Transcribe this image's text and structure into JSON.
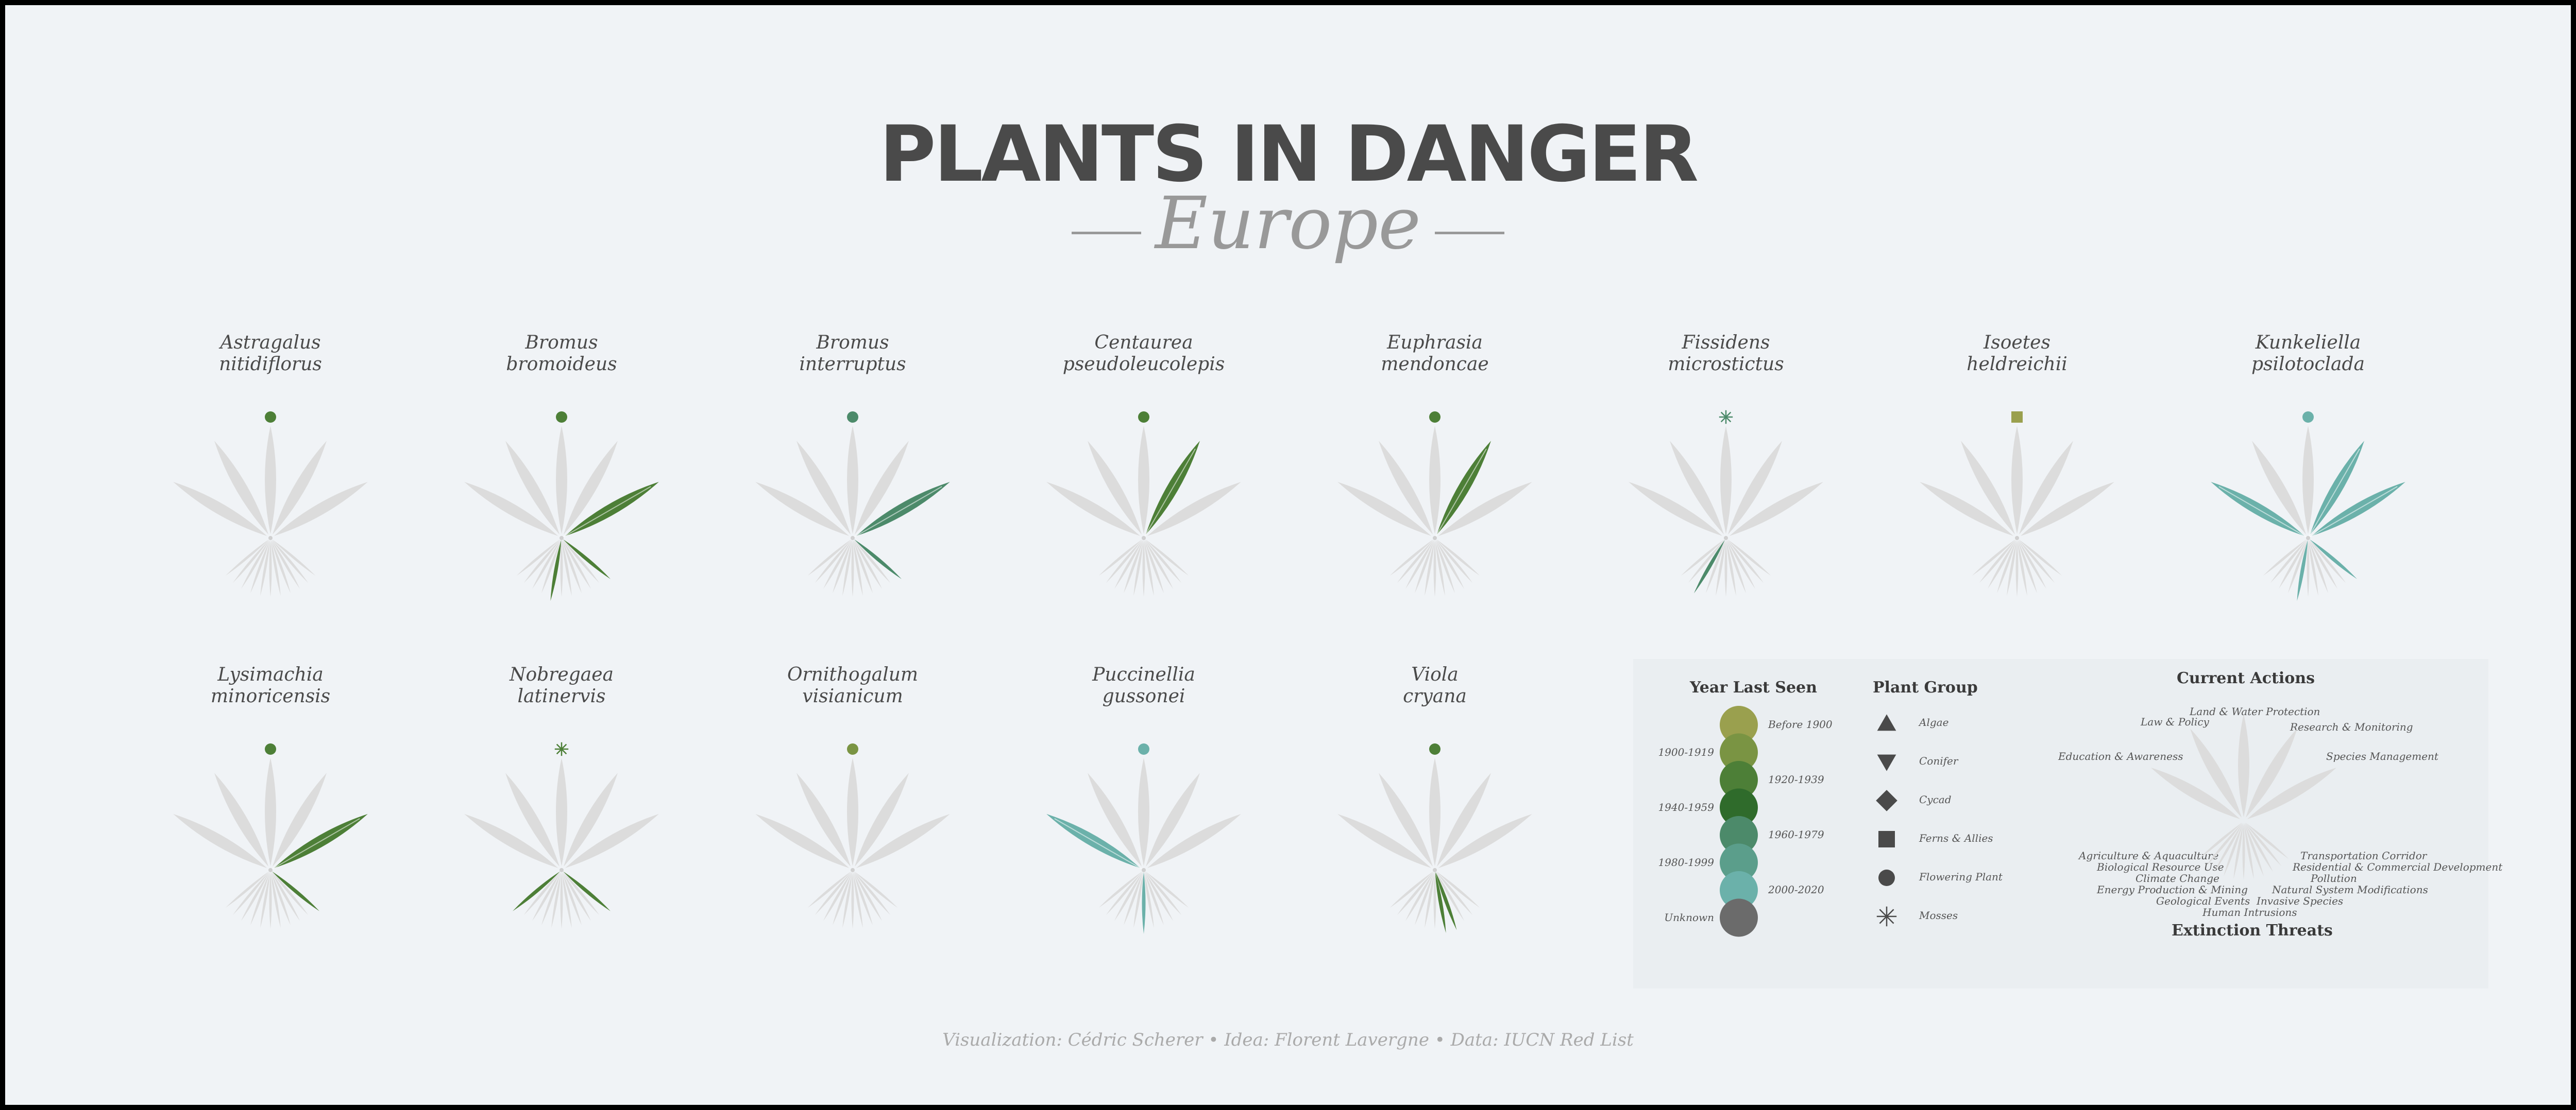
{
  "header": {
    "title": "PLANTS IN DANGER",
    "subtitle": "Europe"
  },
  "caption": {
    "text": "Visualization: Cédric Scherer  • Idea: Florent Lavergne  •  Data: IUCN Red List"
  },
  "colors": {
    "background": "#f0f3f6",
    "ghost_leaf": "#dcdcdc",
    "title": "#4a4a4a",
    "year_palette": {
      "Before 1900": "#9aa04e",
      "1900-1919": "#7a9443",
      "1920-1939": "#4d7f37",
      "1940-1959": "#2f6b2b",
      "1960-1979": "#4c8a6a",
      "1980-1999": "#5b9e8b",
      "2000-2020": "#6bb1aa",
      "Unknown": "#6b6b6b"
    }
  },
  "chart_data": {
    "type": "radial-glyph",
    "actions": [
      "Land & Water Protection",
      "Law & Policy",
      "Research & Monitoring",
      "Education & Awareness",
      "Species Management"
    ],
    "threats": [
      "Agriculture & Aquaculture",
      "Biological Resource Use",
      "Climate Change",
      "Energy Production & Mining",
      "Geological Events",
      "Human Intrusions",
      "Invasive Species",
      "Natural System Modifications",
      "Pollution",
      "Residential & Commercial Development",
      "Transportation Corridor"
    ],
    "species": [
      {
        "name": [
          "Astragalus",
          "nitidiflorus"
        ],
        "group": "Flowering Plant",
        "year": "1920-1939",
        "actions": [],
        "threats": []
      },
      {
        "name": [
          "Bromus",
          "bromoideus"
        ],
        "group": "Flowering Plant",
        "year": "1920-1939",
        "actions": [
          "Species Management"
        ],
        "threats": [
          "Agriculture & Aquaculture",
          "Invasive Species"
        ]
      },
      {
        "name": [
          "Bromus",
          "interruptus"
        ],
        "group": "Flowering Plant",
        "year": "1960-1979",
        "actions": [
          "Species Management"
        ],
        "threats": [
          "Agriculture & Aquaculture"
        ]
      },
      {
        "name": [
          "Centaurea",
          "pseudoleucolepis"
        ],
        "group": "Flowering Plant",
        "year": "1920-1939",
        "actions": [
          "Education & Awareness"
        ],
        "threats": []
      },
      {
        "name": [
          "Euphrasia",
          "mendoncae"
        ],
        "group": "Flowering Plant",
        "year": "1920-1939",
        "actions": [
          "Education & Awareness"
        ],
        "threats": []
      },
      {
        "name": [
          "Fissidens",
          "microstictus"
        ],
        "group": "Mosses",
        "year": "1960-1979",
        "actions": [],
        "threats": [
          "Pollution"
        ]
      },
      {
        "name": [
          "Isoetes",
          "heldreichii"
        ],
        "group": "Ferns & Allies",
        "year": "Before 1900",
        "actions": [],
        "threats": []
      },
      {
        "name": [
          "Kunkeliella",
          "psilotoclada"
        ],
        "group": "Flowering Plant",
        "year": "2000-2020",
        "actions": [
          "Land & Water Protection",
          "Education & Awareness",
          "Species Management"
        ],
        "threats": [
          "Agriculture & Aquaculture",
          "Invasive Species"
        ]
      },
      {
        "name": [
          "Lysimachia",
          "minoricensis"
        ],
        "group": "Flowering Plant",
        "year": "1920-1939",
        "actions": [
          "Species Management"
        ],
        "threats": [
          "Agriculture & Aquaculture"
        ]
      },
      {
        "name": [
          "Nobregaea",
          "latinervis"
        ],
        "group": "Mosses",
        "year": "1920-1939",
        "actions": [],
        "threats": [
          "Agriculture & Aquaculture",
          "Transportation Corridor"
        ]
      },
      {
        "name": [
          "Ornithogalum",
          "visianicum"
        ],
        "group": "Flowering Plant",
        "year": "1900-1919",
        "actions": [],
        "threats": []
      },
      {
        "name": [
          "Puccinellia",
          "gussonei"
        ],
        "group": "Flowering Plant",
        "year": "2000-2020",
        "actions": [
          "Land & Water Protection"
        ],
        "threats": [
          "Human Intrusions"
        ]
      },
      {
        "name": [
          "Viola",
          "cryana"
        ],
        "group": "Flowering Plant",
        "year": "1920-1939",
        "actions": [],
        "threats": [
          "Energy Production & Mining",
          "Geological Events"
        ]
      }
    ]
  },
  "legend": {
    "year": {
      "title": "Year Last Seen",
      "items": [
        "Before 1900",
        "1900-1919",
        "1920-1939",
        "1940-1959",
        "1960-1979",
        "1980-1999",
        "2000-2020",
        "Unknown"
      ]
    },
    "group": {
      "title": "Plant Group",
      "items": [
        {
          "label": "Algae",
          "icon": "triangle-up-icon"
        },
        {
          "label": "Conifer",
          "icon": "triangle-down-icon"
        },
        {
          "label": "Cycad",
          "icon": "diamond-icon"
        },
        {
          "label": "Ferns & Allies",
          "icon": "square-icon"
        },
        {
          "label": "Flowering Plant",
          "icon": "circle-icon"
        },
        {
          "label": "Mosses",
          "icon": "asterisk-icon"
        }
      ]
    },
    "glyph": {
      "actions_title": "Current Actions",
      "threats_title": "Extinction Threats"
    }
  }
}
